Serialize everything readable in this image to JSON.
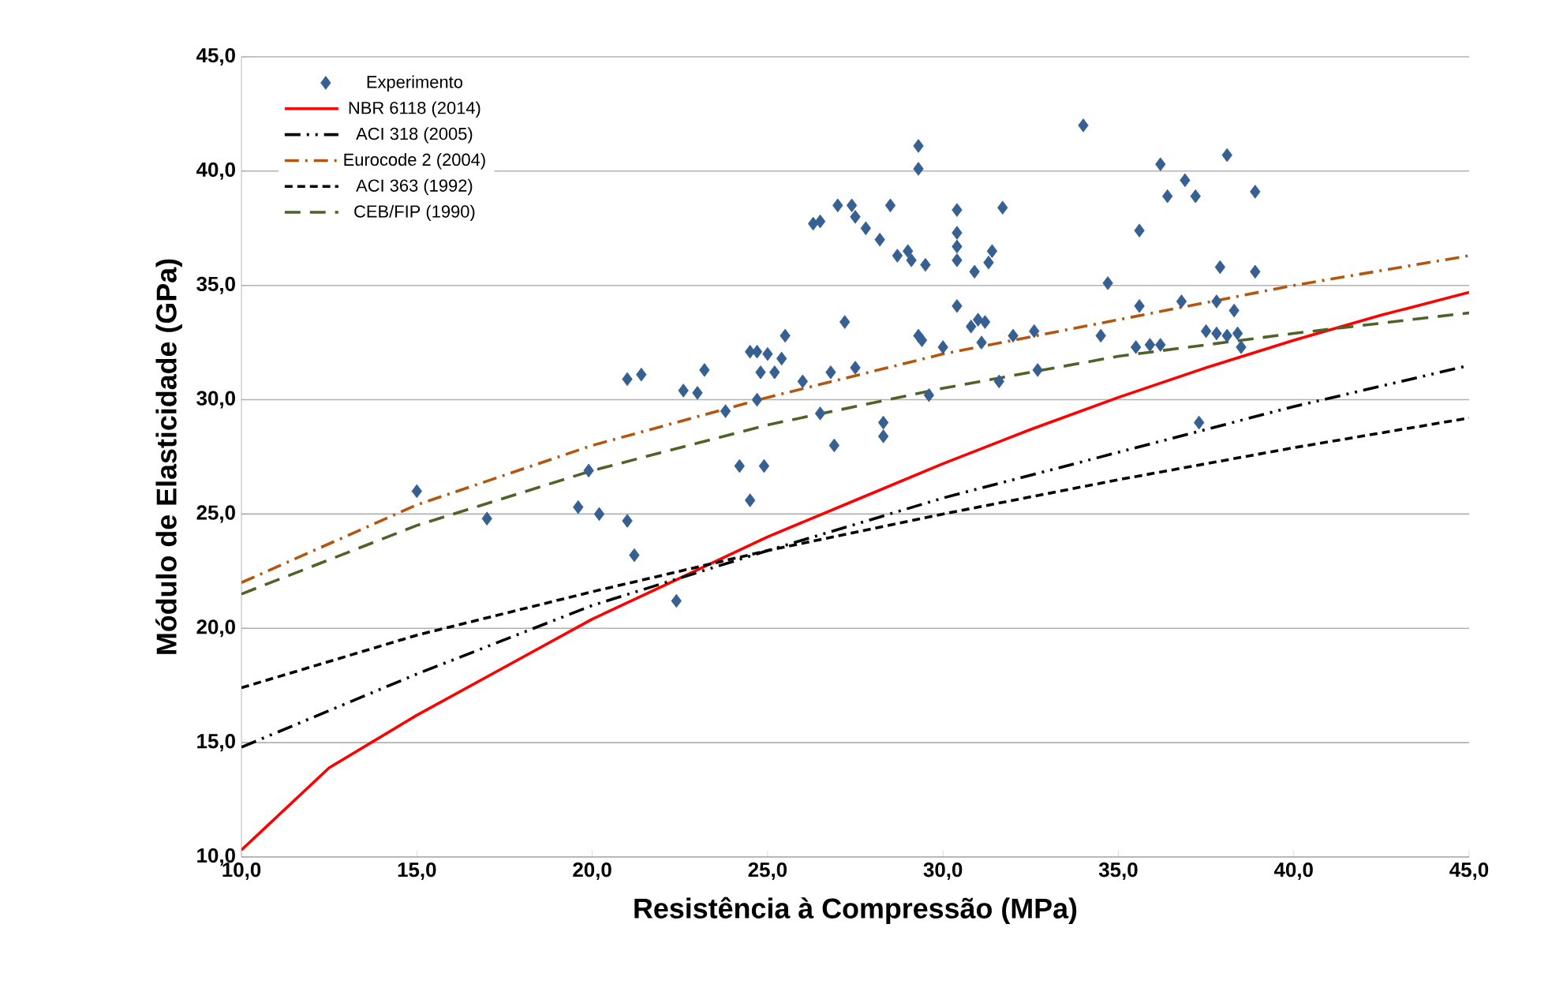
{
  "chart_data": {
    "type": "line",
    "xlabel": "Resistência  à Compressão (MPa)",
    "ylabel": "Módulo de Elasticidade (GPa)",
    "xlim": [
      10,
      45
    ],
    "ylim": [
      10,
      45
    ],
    "xticks": [
      {
        "value": 10,
        "label": "10,0"
      },
      {
        "value": 15,
        "label": "15,0"
      },
      {
        "value": 20,
        "label": "20,0"
      },
      {
        "value": 25,
        "label": "25,0"
      },
      {
        "value": 30,
        "label": "30,0"
      },
      {
        "value": 35,
        "label": "35,0"
      },
      {
        "value": 40,
        "label": "40,0"
      },
      {
        "value": 45,
        "label": "45,0"
      }
    ],
    "yticks": [
      {
        "value": 10,
        "label": "10,0"
      },
      {
        "value": 15,
        "label": "15,0"
      },
      {
        "value": 20,
        "label": "20,0"
      },
      {
        "value": 25,
        "label": "25,0"
      },
      {
        "value": 30,
        "label": "30,0"
      },
      {
        "value": 35,
        "label": "35,0"
      },
      {
        "value": 40,
        "label": "40,0"
      },
      {
        "value": 45,
        "label": "45,0"
      }
    ],
    "grid": "y",
    "legend": "top left",
    "series": [
      {
        "name": "Experimento",
        "type": "scatter",
        "marker": "diamond",
        "color": "#376092",
        "x": [
          15.0,
          17.0,
          19.6,
          19.9,
          20.2,
          21.0,
          21.2,
          21.0,
          21.4,
          22.4,
          22.6,
          23.0,
          23.2,
          23.8,
          24.2,
          24.5,
          24.5,
          24.7,
          24.7,
          24.8,
          24.9,
          25.0,
          25.2,
          25.4,
          25.5,
          26.0,
          26.3,
          26.5,
          26.5,
          26.8,
          26.9,
          27.0,
          27.2,
          27.4,
          27.5,
          27.5,
          27.8,
          28.2,
          28.3,
          28.3,
          28.5,
          28.7,
          29.0,
          29.1,
          29.3,
          29.3,
          29.3,
          29.4,
          29.5,
          29.6,
          30.0,
          30.4,
          30.4,
          30.4,
          30.4,
          30.4,
          30.8,
          30.9,
          31.0,
          31.1,
          31.2,
          31.3,
          31.4,
          31.6,
          31.7,
          32.0,
          32.6,
          32.7,
          34.0,
          34.5,
          34.7,
          35.5,
          35.6,
          35.6,
          35.9,
          36.2,
          36.2,
          36.4,
          36.8,
          36.9,
          37.2,
          37.3,
          37.5,
          37.8,
          37.8,
          37.9,
          38.1,
          38.1,
          38.3,
          38.4,
          38.5,
          38.9,
          38.9
        ],
        "values": [
          26.0,
          24.8,
          25.3,
          26.9,
          25.0,
          24.7,
          23.2,
          30.9,
          31.1,
          21.2,
          30.4,
          30.3,
          31.3,
          29.5,
          27.1,
          25.6,
          32.1,
          32.1,
          30.0,
          31.2,
          27.1,
          32.0,
          31.2,
          31.8,
          32.8,
          30.8,
          37.7,
          37.8,
          29.4,
          31.2,
          28.0,
          38.5,
          33.4,
          38.5,
          38.0,
          31.4,
          37.5,
          37.0,
          28.4,
          29.0,
          38.5,
          36.3,
          36.5,
          36.1,
          41.1,
          40.1,
          32.8,
          32.6,
          35.9,
          30.2,
          32.3,
          38.3,
          37.3,
          36.7,
          36.1,
          34.1,
          33.2,
          35.6,
          33.5,
          32.5,
          33.4,
          36.0,
          36.5,
          30.8,
          38.4,
          32.8,
          33.0,
          31.3,
          42.0,
          32.8,
          35.1,
          32.3,
          37.4,
          34.1,
          32.4,
          40.3,
          32.4,
          38.9,
          34.3,
          39.6,
          38.9,
          29.0,
          33.0,
          32.9,
          34.3,
          35.8,
          40.7,
          32.8,
          33.9,
          32.9,
          32.3,
          39.1,
          35.6
        ]
      },
      {
        "name": "NBR 6118 (2014)",
        "line_style": "solid",
        "color": "#ff0000",
        "x": [
          10,
          12.5,
          15,
          17.5,
          20,
          22.5,
          25,
          27.5,
          30,
          32.5,
          35,
          37.5,
          40,
          42.5,
          45
        ],
        "values": [
          10.3,
          13.9,
          16.2,
          18.3,
          20.4,
          22.2,
          24.0,
          25.6,
          27.2,
          28.7,
          30.1,
          31.4,
          32.6,
          33.7,
          34.7
        ]
      },
      {
        "name": "ACI 318 (2005)",
        "line_style": "dashdotdot",
        "color": "#000000",
        "x": [
          10,
          15,
          20,
          25,
          30,
          35,
          40,
          45
        ],
        "values": [
          14.8,
          18.0,
          21.0,
          23.4,
          25.7,
          27.7,
          29.7,
          31.5
        ]
      },
      {
        "name": "Eurocode 2 (2004)",
        "line_style": "dashdot",
        "color": "#b3560f",
        "x": [
          10,
          15,
          20,
          25,
          30,
          35,
          40,
          45
        ],
        "values": [
          22.0,
          25.4,
          28.0,
          30.1,
          32.0,
          33.5,
          35.0,
          36.3
        ]
      },
      {
        "name": "ACI 363 (1992)",
        "line_style": "dashed",
        "color": "#000000",
        "x": [
          10,
          15,
          20,
          25,
          30,
          35,
          40,
          45
        ],
        "values": [
          17.4,
          19.7,
          21.6,
          23.4,
          25.0,
          26.5,
          27.9,
          29.2
        ]
      },
      {
        "name": "CEB/FIP (1990)",
        "line_style": "longdash",
        "color": "#4f6228",
        "x": [
          10,
          15,
          20,
          25,
          30,
          35,
          40,
          45
        ],
        "values": [
          21.5,
          24.5,
          26.9,
          28.9,
          30.5,
          31.9,
          32.9,
          33.8
        ]
      }
    ]
  }
}
